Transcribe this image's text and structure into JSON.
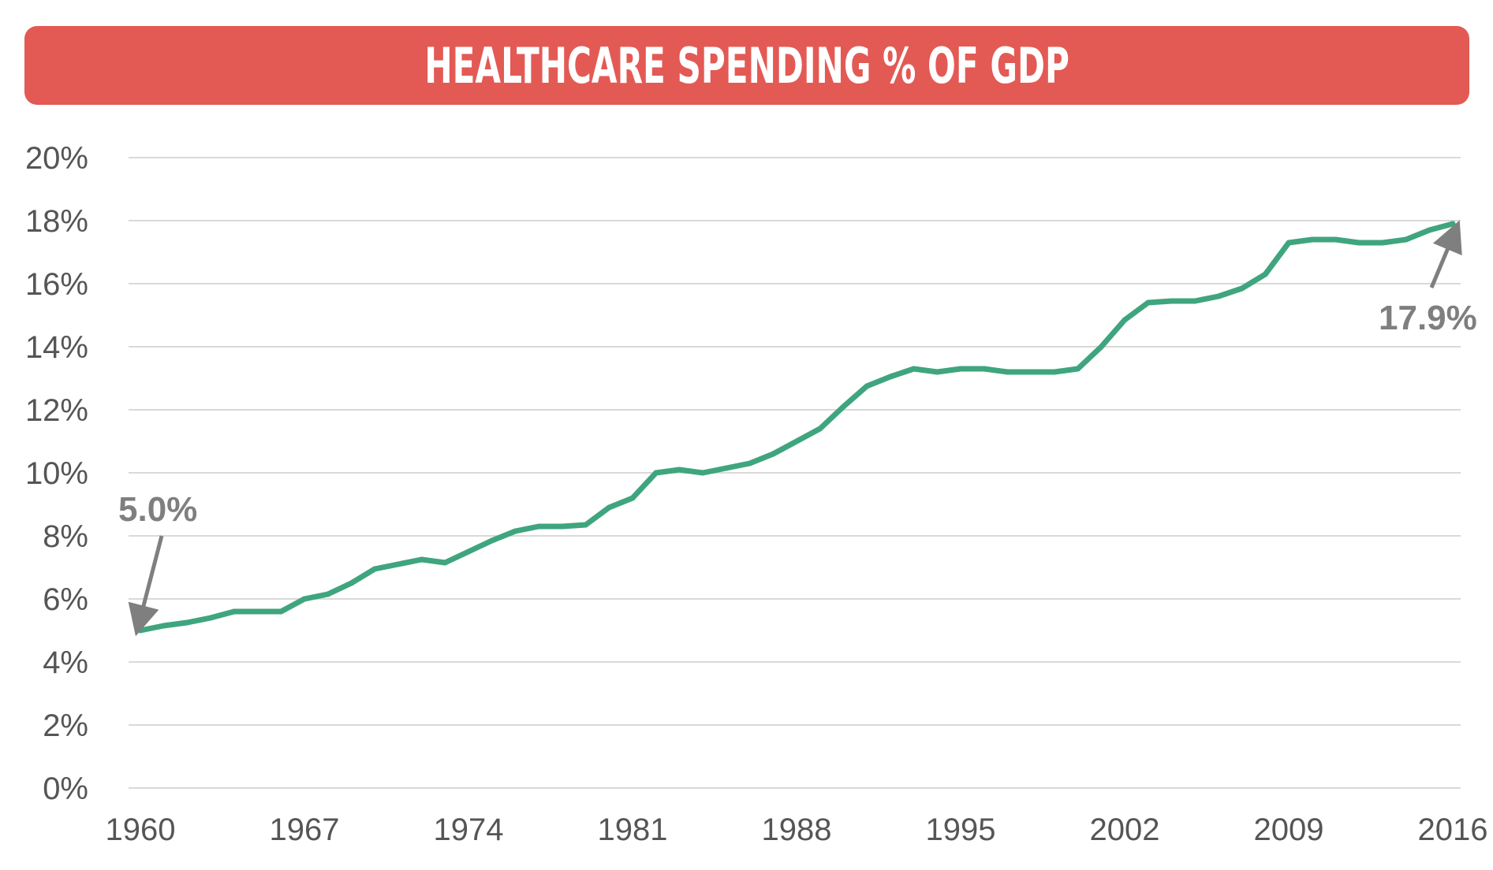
{
  "chart_data": {
    "type": "line",
    "title": "HEALTHCARE SPENDING % OF GDP",
    "xlabel": "",
    "ylabel": "",
    "ylim": [
      0,
      20
    ],
    "xlim": [
      1960,
      2016
    ],
    "grid": true,
    "y_ticks": [
      0,
      2,
      4,
      6,
      8,
      10,
      12,
      14,
      16,
      18,
      20
    ],
    "y_tick_labels": [
      "0%",
      "2%",
      "4%",
      "6%",
      "8%",
      "10%",
      "12%",
      "14%",
      "16%",
      "18%",
      "20%"
    ],
    "x_ticks": [
      1960,
      1967,
      1974,
      1981,
      1988,
      1995,
      2002,
      2009,
      2016
    ],
    "x_tick_labels": [
      "1960",
      "1967",
      "1974",
      "1981",
      "1988",
      "1995",
      "2002",
      "2009",
      "2016"
    ],
    "series": [
      {
        "name": "Healthcare Spending % of GDP",
        "color": "#3fa57f",
        "x": [
          1960,
          1961,
          1962,
          1963,
          1964,
          1965,
          1966,
          1967,
          1968,
          1969,
          1970,
          1971,
          1972,
          1973,
          1974,
          1975,
          1976,
          1977,
          1978,
          1979,
          1980,
          1981,
          1982,
          1983,
          1984,
          1985,
          1986,
          1987,
          1988,
          1989,
          1990,
          1991,
          1992,
          1993,
          1994,
          1995,
          1996,
          1997,
          1998,
          1999,
          2000,
          2001,
          2002,
          2003,
          2004,
          2005,
          2006,
          2007,
          2008,
          2009,
          2010,
          2011,
          2012,
          2013,
          2014,
          2015,
          2016
        ],
        "values": [
          5.0,
          5.15,
          5.25,
          5.4,
          5.6,
          5.6,
          5.6,
          6.0,
          6.15,
          6.5,
          6.95,
          7.1,
          7.25,
          7.15,
          7.5,
          7.85,
          8.15,
          8.3,
          8.3,
          8.35,
          8.9,
          9.2,
          10.0,
          10.1,
          10.0,
          10.15,
          10.3,
          10.6,
          11.0,
          11.4,
          12.1,
          12.75,
          13.05,
          13.3,
          13.2,
          13.3,
          13.3,
          13.2,
          13.2,
          13.2,
          13.3,
          14.0,
          14.85,
          15.4,
          15.45,
          15.45,
          15.6,
          15.85,
          16.3,
          17.3,
          17.4,
          17.4,
          17.3,
          17.3,
          17.4,
          17.7,
          17.9
        ]
      }
    ],
    "annotations": [
      {
        "text": "5.0%",
        "x": 1960,
        "y": 5.0
      },
      {
        "text": "17.9%",
        "x": 2016,
        "y": 17.9
      }
    ],
    "colors": {
      "banner": "#e35a55",
      "line": "#3fa57f",
      "grid": "#d9d9d9",
      "annotation": "#7f7f7f",
      "tick_text": "#555555"
    }
  }
}
